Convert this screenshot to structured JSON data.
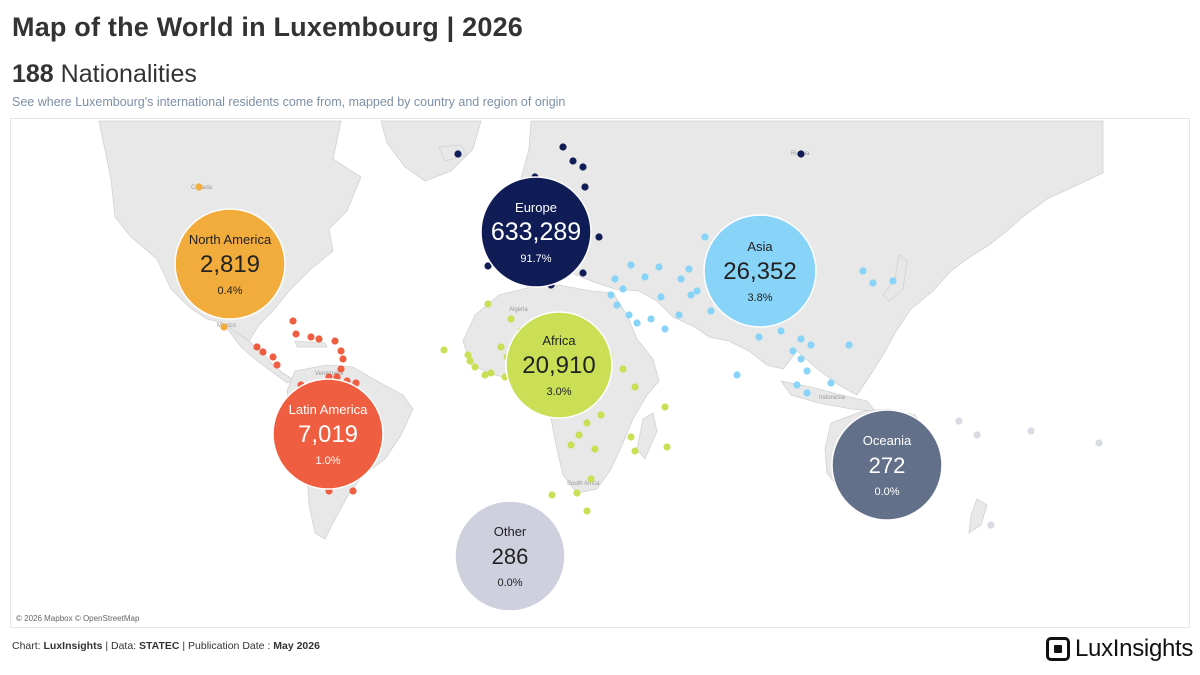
{
  "header": {
    "title": "Map of the World in Luxembourg | 2026",
    "count": "188",
    "count_label": "Nationalities",
    "description": "See where Luxembourg's international residents come from, mapped by country and region of origin"
  },
  "map": {
    "attribution": "© 2026 Mapbox © OpenStreetMap",
    "regions": [
      {
        "name": "Europe",
        "value": "633,289",
        "share": "91.7%",
        "color": "#101c55",
        "text_color": "#ffffff"
      },
      {
        "name": "North America",
        "value": "2,819",
        "share": "0.4%",
        "color": "#f2ac3c",
        "text_color": "#222222"
      },
      {
        "name": "Asia",
        "value": "26,352",
        "share": "3.8%",
        "color": "#88d3f8",
        "text_color": "#222222"
      },
      {
        "name": "Africa",
        "value": "20,910",
        "share": "3.0%",
        "color": "#cadf56",
        "text_color": "#222222"
      },
      {
        "name": "Latin America",
        "value": "7,019",
        "share": "1.0%",
        "color": "#ef5e40",
        "text_color": "#ffffff"
      },
      {
        "name": "Oceania",
        "value": "272",
        "share": "0.0%",
        "color": "#637089",
        "text_color": "#ffffff"
      },
      {
        "name": "Other",
        "value": "286",
        "share": "0.0%",
        "color": "#cfd0de",
        "text_color": "#222222"
      }
    ],
    "map_labels": [
      "Canada",
      "Mexico",
      "Venezuela",
      "Algeria",
      "South Africa",
      "Russia",
      "Indonesia"
    ]
  },
  "footer": {
    "prefix": "Chart: ",
    "chart_by": "LuxInsights",
    "data_prefix": " | Data: ",
    "data_source": "STATEC",
    "pub_prefix": " | Publication Date : ",
    "pub_date": "May 2026"
  },
  "brand": {
    "logo_text": "LuxInsights"
  }
}
